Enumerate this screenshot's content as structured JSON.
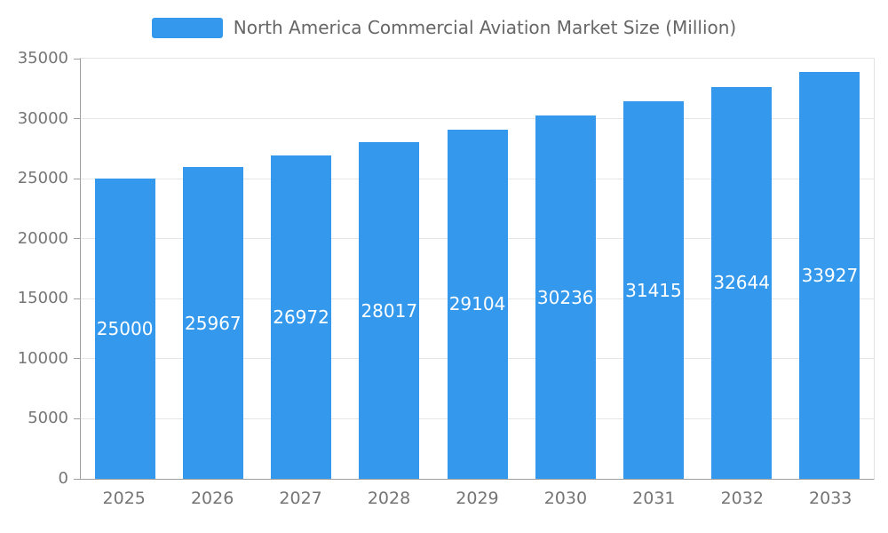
{
  "chart_data": {
    "type": "bar",
    "title": "North America Commercial Aviation Market Size (Million)",
    "categories": [
      "2025",
      "2026",
      "2027",
      "2028",
      "2029",
      "2030",
      "2031",
      "2032",
      "2033"
    ],
    "values": [
      25000,
      25967,
      26972,
      28017,
      29104,
      30236,
      31415,
      32644,
      33927
    ],
    "xlabel": "",
    "ylabel": "",
    "ylim": [
      0,
      35000
    ],
    "yticks": [
      0,
      5000,
      10000,
      15000,
      20000,
      25000,
      30000,
      35000
    ],
    "grid": true,
    "legend_position": "top",
    "bar_color": "#3499EC",
    "value_label_color": "#FFFFFF",
    "axis_text_color": "#757575"
  }
}
